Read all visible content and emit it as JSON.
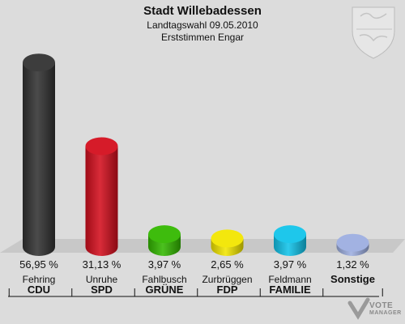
{
  "header": {
    "title": "Stadt Willebadessen",
    "subtitle": "Landtagswahl 09.05.2010",
    "subtitle2": "Erststimmen Engar"
  },
  "logo": {
    "text_line1": "VOTE",
    "text_line2": "MANAGER",
    "icon": "crest-icon"
  },
  "chart_data": {
    "type": "bar",
    "title": "Stadt Willebadessen",
    "subtitle": "Landtagswahl 09.05.2010 · Erststimmen Engar",
    "unit": "%",
    "ylim": [
      0,
      60
    ],
    "categories": [
      "CDU",
      "SPD",
      "GRÜNE",
      "FDP",
      "FAMILIE",
      "Sonstige"
    ],
    "candidates": [
      "Fehring",
      "Unruhe",
      "Fahlbusch",
      "Zurbrüggen",
      "Feldmann",
      ""
    ],
    "values": [
      56.95,
      31.13,
      3.97,
      2.65,
      3.97,
      1.32
    ],
    "labels": [
      "56,95 %",
      "31,13 %",
      "3,97 %",
      "2,65 %",
      "3,97 %",
      "1,32 %"
    ],
    "colors": [
      "#333333",
      "#d40f1e",
      "#34b800",
      "#f2e600",
      "#12c4ea",
      "#9daee0"
    ]
  }
}
